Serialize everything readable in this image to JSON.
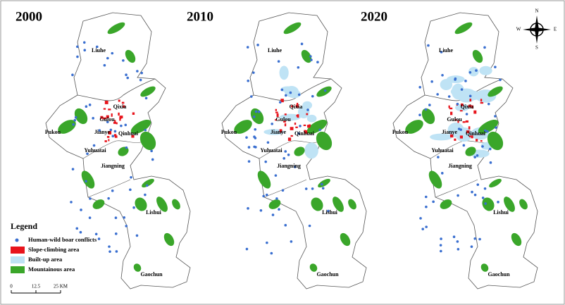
{
  "maps": [
    {
      "year": "2000",
      "places": [
        "Liuhe",
        "Pukou",
        "Qixia",
        "Gulou",
        "Jianye",
        "Qinhuai",
        "Yuhuatai",
        "Jiangning",
        "Lishui",
        "Gaochun"
      ]
    },
    {
      "year": "2010",
      "places": [
        "Liuhe",
        "Pukou",
        "Qixia",
        "Gulou",
        "Jianye",
        "Qinhuai",
        "Yuhuatai",
        "Jiangning",
        "Lishui",
        "Gaochun"
      ]
    },
    {
      "year": "2020",
      "places": [
        "Liuhe",
        "Pukou",
        "Qixia",
        "Gulou",
        "Jianye",
        "Qinhuai",
        "Yuhuatai",
        "Jiangning",
        "Lishui",
        "Gaochun"
      ]
    }
  ],
  "legend": {
    "title": "Legend",
    "items": [
      "Human-wild boar conflicts",
      "Slope-climbing area",
      "Built-up area",
      "Mountainous area"
    ]
  },
  "scale": {
    "labels": [
      "0",
      "12.5",
      "25 KM"
    ]
  },
  "compass": {
    "north": "N",
    "east": "E",
    "south": "S",
    "west": "W"
  }
}
